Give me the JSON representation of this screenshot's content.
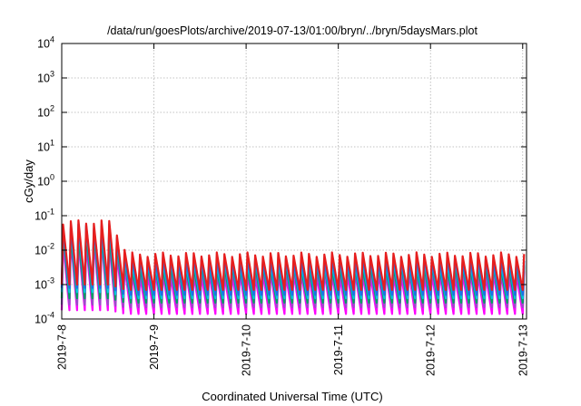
{
  "chart_data": {
    "type": "line",
    "title": "/data/run/goesPlots/archive/2019-07-13/01:00/bryn/../bryn/5daysMars.plot",
    "xlabel": "Coordinated Universal Time (UTC)",
    "ylabel": "cGy/day",
    "x_range": [
      "2019-07-08",
      "2019-07-13 01:00"
    ],
    "x_ticks": [
      "2019-7-8",
      "2019-7-9",
      "2019-7-10",
      "2019-7-11",
      "2019-7-12",
      "2019-7-13"
    ],
    "y_scale": "log",
    "ylim": [
      0.0001,
      10000
    ],
    "y_ticks": [
      {
        "base": "10",
        "exp": "-4"
      },
      {
        "base": "10",
        "exp": "-3"
      },
      {
        "base": "10",
        "exp": "-2"
      },
      {
        "base": "10",
        "exp": "-1"
      },
      {
        "base": "10",
        "exp": "0"
      },
      {
        "base": "10",
        "exp": "1"
      },
      {
        "base": "10",
        "exp": "2"
      },
      {
        "base": "10",
        "exp": "3"
      },
      {
        "base": "10",
        "exp": "4"
      }
    ],
    "grid": true,
    "sawtooth_period_hours": 2,
    "series": [
      {
        "color": "#ff00ff",
        "peak_first_day": 0.018,
        "trough_first_day": 0.00018,
        "peak_later": 0.0021,
        "trough_later": 0.00014
      },
      {
        "color": "#9a4dc8",
        "peak_first_day": 0.026,
        "trough_first_day": 0.00026,
        "peak_later": 0.003,
        "trough_later": 0.00022
      },
      {
        "color": "#00a060",
        "peak_first_day": 0.03,
        "trough_first_day": 0.0004,
        "peak_later": 0.0036,
        "trough_later": 0.0003
      },
      {
        "color": "#00c8e0",
        "peak_first_day": 0.04,
        "trough_first_day": 0.0006,
        "peak_later": 0.0045,
        "trough_later": 0.0004
      },
      {
        "color": "#1e6ee6",
        "peak_first_day": 0.05,
        "trough_first_day": 0.0008,
        "peak_later": 0.0055,
        "trough_later": 0.0005
      },
      {
        "color": "#e61e1e",
        "peak_first_day": 0.065,
        "trough_first_day": 0.001,
        "peak_later": 0.0075,
        "trough_later": 0.0007
      }
    ]
  }
}
